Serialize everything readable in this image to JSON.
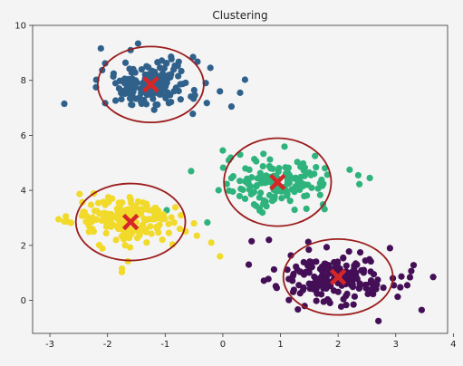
{
  "chart_data": {
    "type": "scatter",
    "title": "Clustering",
    "xlabel": "",
    "ylabel": "",
    "xlim": [
      -3.3,
      3.9
    ],
    "ylim": [
      -1.2,
      10.0
    ],
    "xticks": [
      -3,
      -2,
      -1,
      0,
      1,
      2,
      3,
      4
    ],
    "yticks": [
      0,
      2,
      4,
      6,
      8,
      10
    ],
    "grid": false,
    "clusters": [
      {
        "color": "#30618b",
        "center": [
          -1.25,
          7.85
        ],
        "spread": [
          0.42,
          0.45
        ],
        "n": 180,
        "outliers": [
          [
            -2.75,
            7.15
          ],
          [
            0.3,
            7.55
          ],
          [
            -0.05,
            7.6
          ],
          [
            0.15,
            7.05
          ],
          [
            -2.2,
            7.75
          ],
          [
            -1.6,
            9.1
          ]
        ],
        "circle": {
          "cx": -1.25,
          "cy": 7.85,
          "rx": 0.92,
          "ry": 1.38
        }
      },
      {
        "color": "#2fb37d",
        "center": [
          0.95,
          4.3
        ],
        "spread": [
          0.45,
          0.42
        ],
        "n": 150,
        "outliers": [
          [
            0.0,
            5.45
          ],
          [
            -0.55,
            4.7
          ],
          [
            2.35,
            4.55
          ],
          [
            2.55,
            4.45
          ],
          [
            2.2,
            4.75
          ],
          [
            0.3,
            5.3
          ],
          [
            1.6,
            5.25
          ]
        ],
        "circle": {
          "cx": 0.95,
          "cy": 4.3,
          "rx": 0.93,
          "ry": 1.6
        }
      },
      {
        "color": "#f1da2a",
        "center": [
          -1.65,
          2.85
        ],
        "spread": [
          0.45,
          0.45
        ],
        "n": 180,
        "outliers": [
          [
            -2.85,
            2.95
          ],
          [
            -0.2,
            2.1
          ],
          [
            -0.05,
            1.6
          ],
          [
            -0.45,
            2.35
          ],
          [
            -1.75,
            1.15
          ],
          [
            -0.5,
            2.8
          ]
        ],
        "circle": {
          "cx": -1.6,
          "cy": 2.85,
          "rx": 0.95,
          "ry": 1.4
        }
      },
      {
        "color": "#440f56",
        "center": [
          1.95,
          0.85
        ],
        "spread": [
          0.5,
          0.45
        ],
        "n": 180,
        "outliers": [
          [
            0.5,
            2.15
          ],
          [
            0.8,
            2.2
          ],
          [
            3.65,
            0.85
          ],
          [
            3.45,
            -0.35
          ],
          [
            2.9,
            1.9
          ],
          [
            0.45,
            1.3
          ],
          [
            3.2,
            0.55
          ],
          [
            2.7,
            -0.75
          ]
        ],
        "circle": {
          "cx": 2.0,
          "cy": 0.85,
          "rx": 0.95,
          "ry": 1.38
        }
      }
    ],
    "centroids": [
      [
        -1.25,
        7.85
      ],
      [
        0.95,
        4.3
      ],
      [
        -1.6,
        2.85
      ],
      [
        2.0,
        0.85
      ]
    ],
    "centroid_color": "#d62728",
    "circle_color": "#9b1c1c"
  }
}
